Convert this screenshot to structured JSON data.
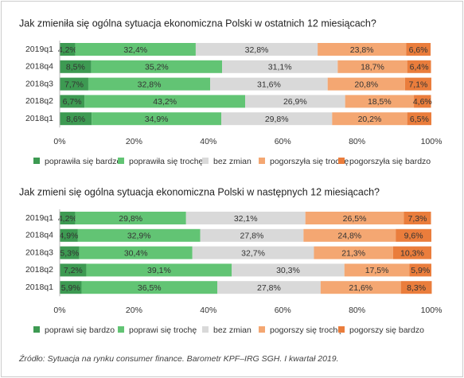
{
  "chart_data": [
    {
      "type": "bar",
      "stacked": true,
      "horizontal": true,
      "title": "Jak zmieniła się ogólna sytuacja ekonomiczna Polski w ostatnich 12 miesiącach?",
      "categories": [
        "2019q1",
        "2018q4",
        "2018q3",
        "2018q2",
        "2018q1"
      ],
      "xlim": [
        0,
        100
      ],
      "xticks": [
        {
          "value": 0,
          "label": "0%"
        },
        {
          "value": 20,
          "label": "20%"
        },
        {
          "value": 40,
          "label": "40%"
        },
        {
          "value": 60,
          "label": "60%"
        },
        {
          "value": 80,
          "label": "80%"
        },
        {
          "value": 100,
          "label": "100%"
        }
      ],
      "series": [
        {
          "name": "poprawiła się bardzo",
          "color": "#3d9a52",
          "values": [
            4.2,
            8.5,
            7.7,
            6.7,
            8.6
          ],
          "value_labels": [
            "4,2%",
            "8,5%",
            "7,7%",
            "6,7%",
            "8,6%"
          ]
        },
        {
          "name": "poprawiła się trochę",
          "color": "#62c474",
          "values": [
            32.4,
            35.2,
            32.8,
            43.2,
            34.9
          ],
          "value_labels": [
            "32,4%",
            "35,2%",
            "32,8%",
            "43,2%",
            "34,9%"
          ]
        },
        {
          "name": "bez zmian",
          "color": "#d9d9d9",
          "values": [
            32.8,
            31.1,
            31.6,
            26.9,
            29.8
          ],
          "value_labels": [
            "32,8%",
            "31,1%",
            "31,6%",
            "26,9%",
            "29,8%"
          ]
        },
        {
          "name": "pogorszyła się trochę",
          "color": "#f4a772",
          "values": [
            23.8,
            18.7,
            20.8,
            18.5,
            20.2
          ],
          "value_labels": [
            "23,8%",
            "18,7%",
            "20,8%",
            "18,5%",
            "20,2%"
          ]
        },
        {
          "name": "pogorszyła się bardzo",
          "color": "#ea7d3c",
          "values": [
            6.6,
            6.4,
            7.1,
            4.6,
            6.5
          ],
          "value_labels": [
            "6,6%",
            "6,4%",
            "7,1%",
            "4,6%",
            "6,5%"
          ]
        }
      ]
    },
    {
      "type": "bar",
      "stacked": true,
      "horizontal": true,
      "title": "Jak zmieni się ogólna sytuacja ekonomiczna Polski w następnych 12 miesiącach?",
      "categories": [
        "2019q1",
        "2018q4",
        "2018q3",
        "2018q2",
        "2018q1"
      ],
      "xlim": [
        0,
        100
      ],
      "xticks": [
        {
          "value": 0,
          "label": "0%"
        },
        {
          "value": 20,
          "label": "20%"
        },
        {
          "value": 40,
          "label": "40%"
        },
        {
          "value": 60,
          "label": "60%"
        },
        {
          "value": 80,
          "label": "80%"
        },
        {
          "value": 100,
          "label": "100%"
        }
      ],
      "series": [
        {
          "name": "poprawi się bardzo",
          "color": "#3d9a52",
          "values": [
            4.2,
            4.9,
            5.3,
            7.2,
            5.9
          ],
          "value_labels": [
            "4,2%",
            "4,9%",
            "5,3%",
            "7,2%",
            "5,9%"
          ]
        },
        {
          "name": "poprawi się trochę",
          "color": "#62c474",
          "values": [
            29.8,
            32.9,
            30.4,
            39.1,
            36.5
          ],
          "value_labels": [
            "29,8%",
            "32,9%",
            "30,4%",
            "39,1%",
            "36,5%"
          ]
        },
        {
          "name": "bez zmian",
          "color": "#d9d9d9",
          "values": [
            32.1,
            27.8,
            32.7,
            30.3,
            27.8
          ],
          "value_labels": [
            "32,1%",
            "27,8%",
            "32,7%",
            "30,3%",
            "27,8%"
          ]
        },
        {
          "name": "pogorszy się trochę",
          "color": "#f4a772",
          "values": [
            26.5,
            24.8,
            21.3,
            17.5,
            21.6
          ],
          "value_labels": [
            "26,5%",
            "24,8%",
            "21,3%",
            "17,5%",
            "21,6%"
          ]
        },
        {
          "name": "pogorszy się bardzo",
          "color": "#ea7d3c",
          "values": [
            7.3,
            9.6,
            10.3,
            5.9,
            8.3
          ],
          "value_labels": [
            "7,3%",
            "9,6%",
            "10,3%",
            "5,9%",
            "8,3%"
          ]
        }
      ]
    }
  ],
  "source": "Źródło: Sytuacja na rynku consumer finance. Barometr KPF–IRG SGH. I kwartał 2019."
}
